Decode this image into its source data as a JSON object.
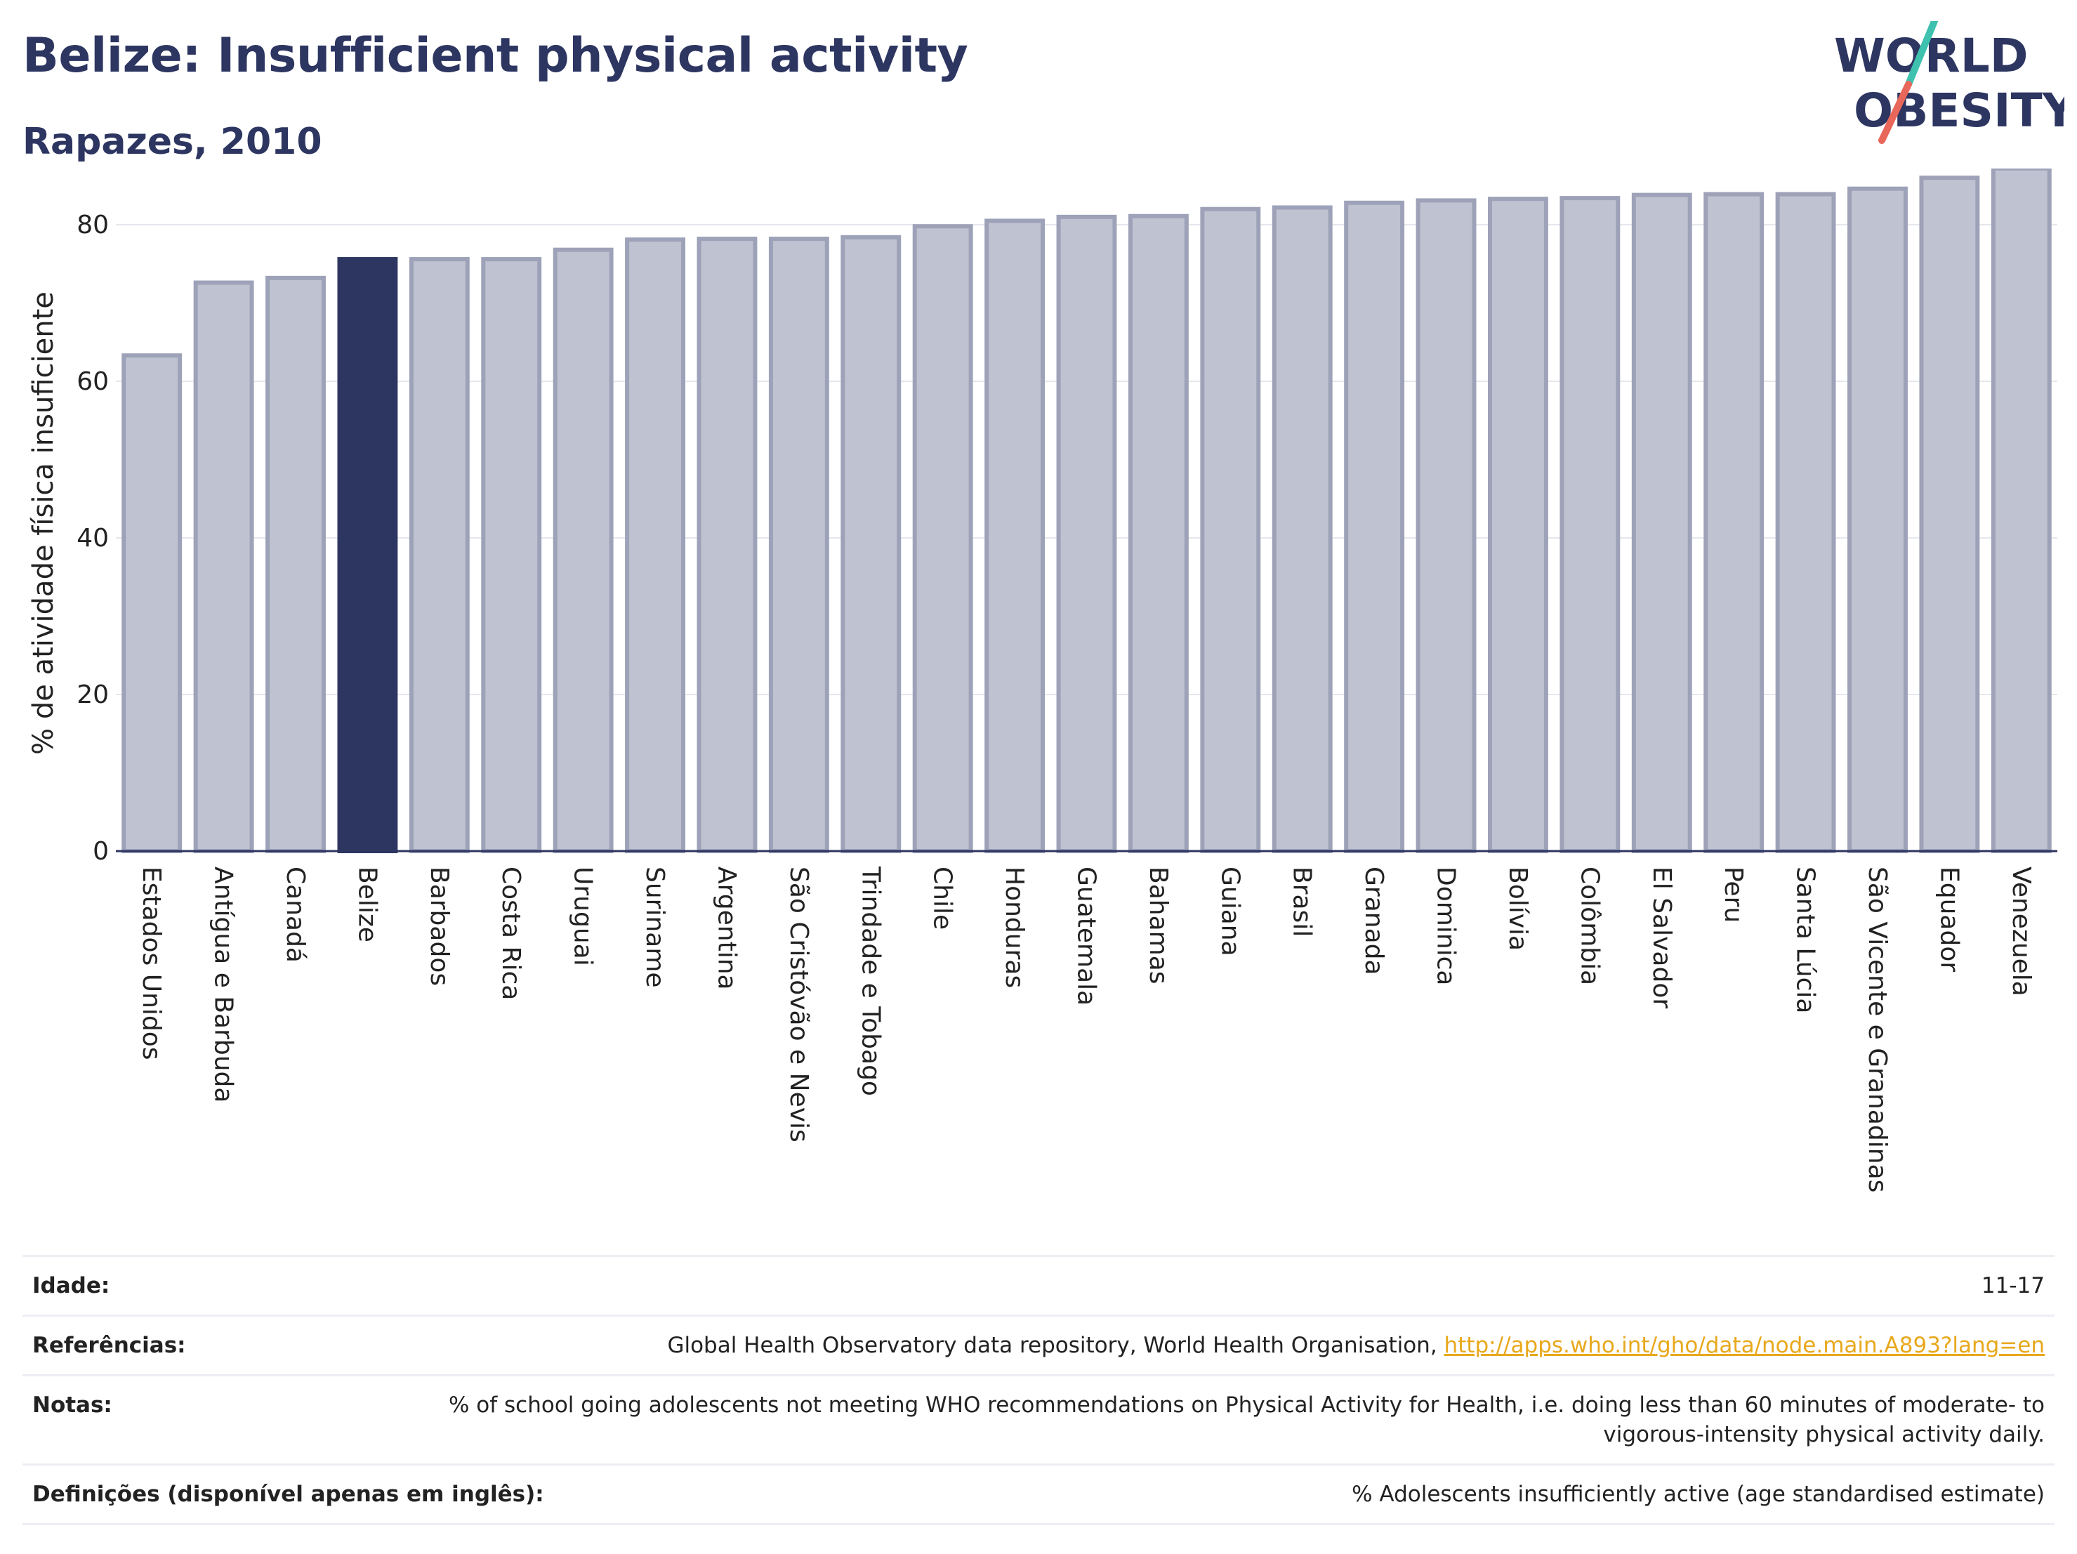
{
  "header": {
    "title": "Belize: Insufficient physical activity",
    "subtitle": "Rapazes, 2010"
  },
  "logo": {
    "line1": "WORLD",
    "line2": "OBESITY",
    "colors": {
      "text": "#2d3561",
      "slash_teal": "#3fc1b0",
      "slash_red": "#e8675a"
    }
  },
  "chart_data": {
    "type": "bar",
    "ylabel": "% de atividade física insuficiente",
    "xlabel": "",
    "ylim": [
      0,
      90
    ],
    "yticks": [
      0,
      20,
      40,
      60,
      80
    ],
    "grid": true,
    "highlight": "Belize",
    "colors": {
      "bar": "#bfc2d1",
      "bar_edge": "#9da2b8",
      "highlight": "#2d3561",
      "axis": "#2d3561",
      "grid": "#e6e7ed"
    },
    "categories": [
      "Estados Unidos",
      "Antígua e Barbuda",
      "Canadá",
      "Belize",
      "Barbados",
      "Costa Rica",
      "Uruguai",
      "Suriname",
      "Argentina",
      "São Cristóvão e Nevis",
      "Trindade e Tobago",
      "Chile",
      "Honduras",
      "Guatemala",
      "Bahamas",
      "Guiana",
      "Brasil",
      "Granada",
      "Dominica",
      "Bolívia",
      "Colômbia",
      "El Salvador",
      "Peru",
      "Santa Lúcia",
      "São Vicente e Granadinas",
      "Equador",
      "Venezuela"
    ],
    "values": [
      63.3,
      72.6,
      73.2,
      75.6,
      75.6,
      75.6,
      76.8,
      78.1,
      78.2,
      78.2,
      78.4,
      79.8,
      80.5,
      81.0,
      81.1,
      82.0,
      82.2,
      82.8,
      83.1,
      83.3,
      83.4,
      83.8,
      83.9,
      83.9,
      84.6,
      86.0,
      87.2
    ]
  },
  "info": {
    "rows": [
      {
        "label": "Idade:",
        "value": "11-17"
      },
      {
        "label": "Referências:",
        "value": "Global Health Observatory data repository, World Health Organisation, ",
        "link": "http://apps.who.int/gho/data/node.main.A893?lang=en"
      },
      {
        "label": "Notas:",
        "value": "% of school going adolescents not meeting WHO recommendations on Physical Activity for Health, i.e. doing less than 60 minutes of moderate- to vigorous-intensity physical activity daily."
      },
      {
        "label": "Definições (disponível apenas em inglês):",
        "value": "% Adolescents insufficiently active (age standardised estimate)"
      }
    ]
  }
}
